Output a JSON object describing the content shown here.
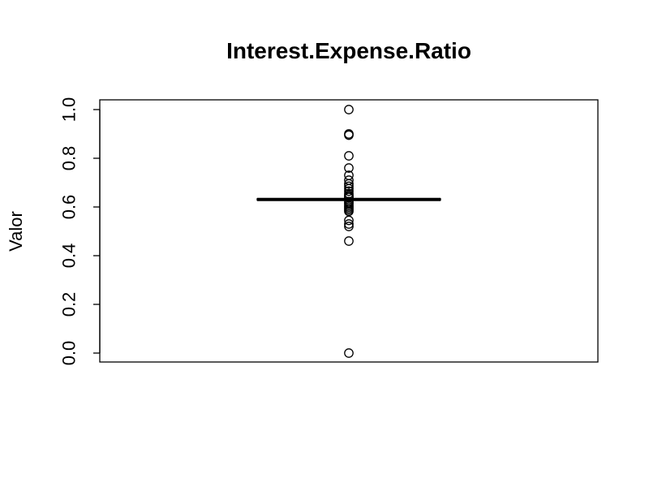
{
  "chart_data": {
    "type": "box",
    "title": "Interest.Expense.Ratio",
    "xlabel": "",
    "ylabel": "Valor",
    "ylim": [
      0,
      1
    ],
    "y_ticks": [
      0.0,
      0.2,
      0.4,
      0.6,
      0.8,
      1.0
    ],
    "y_tick_labels": [
      "0.0",
      "0.2",
      "0.4",
      "0.6",
      "0.8",
      "1.0"
    ],
    "grid": false,
    "legend": "none",
    "box": {
      "q1": 0.628,
      "median": 0.631,
      "q3": 0.634,
      "whisker_low": 0.626,
      "whisker_high": 0.636
    },
    "outliers": [
      1.0,
      0.9,
      0.895,
      0.81,
      0.76,
      0.73,
      0.71,
      0.695,
      0.685,
      0.675,
      0.665,
      0.655,
      0.648,
      0.643,
      0.639,
      0.622,
      0.617,
      0.612,
      0.606,
      0.6,
      0.594,
      0.588,
      0.582,
      0.545,
      0.53,
      0.52,
      0.46,
      0.0
    ]
  }
}
